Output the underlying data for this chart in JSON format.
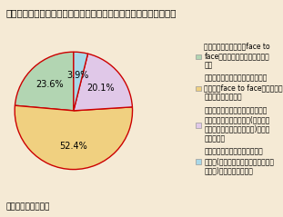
{
  "title": "問　あなたの生活における価値観として、近いものはどれですか。",
  "source": "資料）　国土交通省",
  "slices": [
    23.6,
    52.4,
    20.1,
    3.9
  ],
  "colors": [
    "#b2d5b2",
    "#f0d080",
    "#e0c8e8",
    "#a8d8e8"
  ],
  "labels": [
    "23.6%",
    "52.4%",
    "20.1%",
    "3.9%"
  ],
  "legend_texts": [
    "人との付き合いには、face to\nface（対面）で会う場が必要で\nある",
    "どちらかと言えば、人との付き合\nいには、face to face（対面）で\n会う場が必要である",
    "どちらかと言えば、人との付き合\nいには、インターネット(メール・\nホームページ、ブログなど)などの\n利用を好む",
    "人との付き合いには、インター\nネット(メール・ホームページ、ブロ\nグなど)などの利用を好む"
  ],
  "background_color": "#f5ead5",
  "pie_edge_color": "#cc0000",
  "start_angle": 90,
  "font_size_title": 7.5,
  "font_size_labels": 7,
  "font_size_legend": 5.5,
  "font_size_source": 6.5
}
